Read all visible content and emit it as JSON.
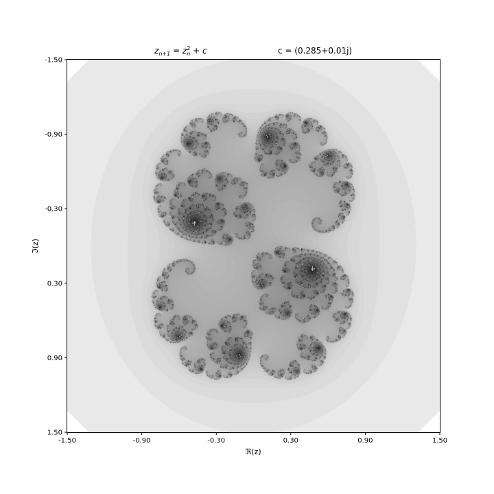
{
  "chart_data": {
    "type": "heatmap",
    "subtype": "julia-set-escape-time",
    "title_left": "z_{n+1} = z_n^2 + c",
    "title_left_parts": {
      "z": "z",
      "sub1": "n+1",
      "eq": " = ",
      "sub2": "n",
      "sup2": "2",
      "plus": " + ",
      "c": "c"
    },
    "title_right": "c = (0.285+0.01j)",
    "c_real": 0.285,
    "c_imag": 0.01,
    "xlabel": "ℜ(z)",
    "ylabel": "ℑ(z)",
    "xlim": [
      -1.5,
      1.5
    ],
    "ylim": [
      -1.5,
      1.5
    ],
    "y_axis_inverted": true,
    "xticks": [
      -1.5,
      -0.9,
      -0.3,
      0.3,
      0.9,
      1.5
    ],
    "yticks": [
      -1.5,
      -0.9,
      -0.3,
      0.3,
      0.9,
      1.5
    ],
    "xtick_labels": [
      "-1.50",
      "-0.90",
      "-0.30",
      "0.30",
      "0.90",
      "1.50"
    ],
    "ytick_labels": [
      "-1.50",
      "-0.90",
      "-0.30",
      "0.30",
      "0.90",
      "1.50"
    ],
    "colormap": "grayscale (white = fast escape, dark = slow escape)",
    "grid": false,
    "legend": "none"
  }
}
